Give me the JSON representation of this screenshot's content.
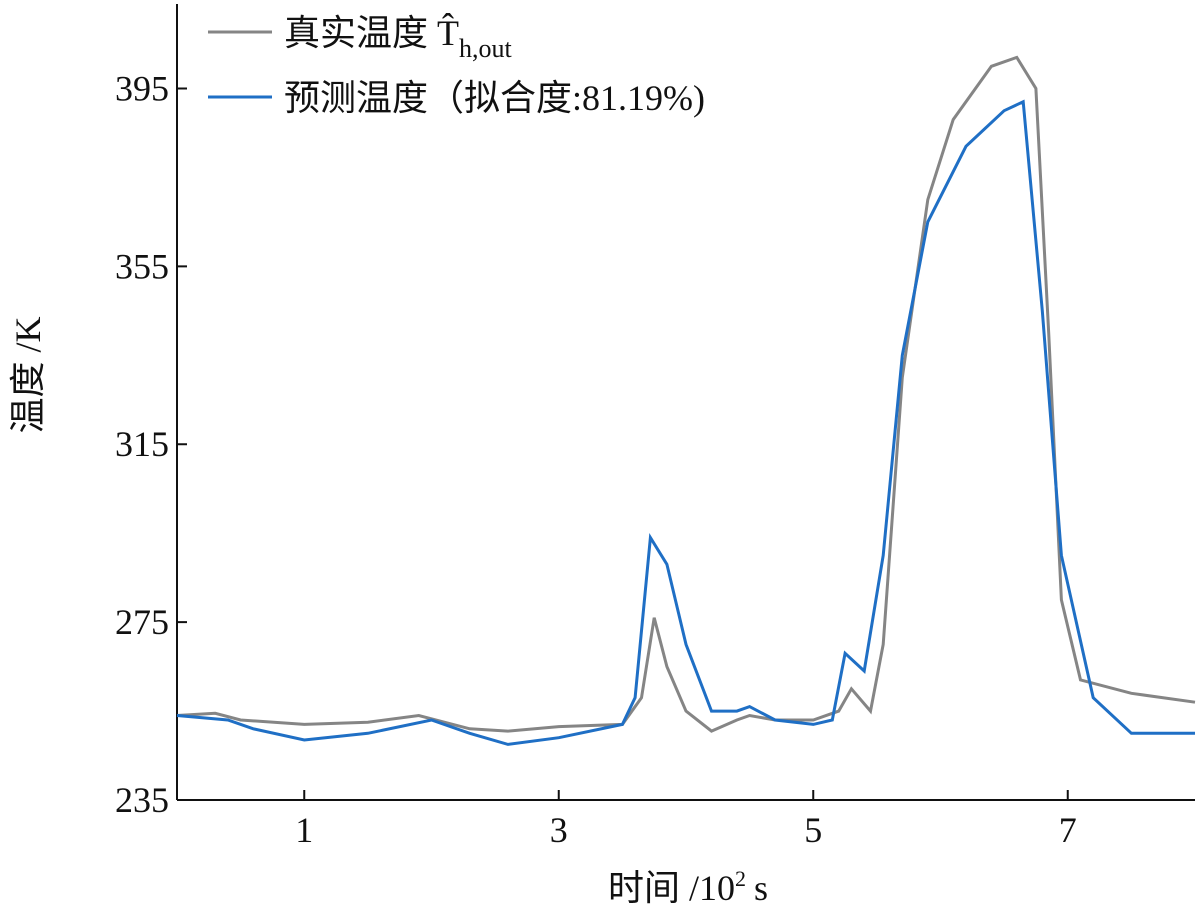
{
  "chart_data": {
    "type": "line",
    "xlabel": {
      "text": "时间 /10",
      "sup": "2",
      "unit": "s"
    },
    "ylabel": "温度 /K",
    "xlim": [
      0,
      8
    ],
    "xticks": [
      1,
      3,
      5,
      7
    ],
    "ylim": [
      235,
      414
    ],
    "yticks": [
      235,
      275,
      315,
      355,
      395
    ],
    "legend": "upper left",
    "series": [
      {
        "name": "真实温度 T̂",
        "name_sub": "h,out",
        "color": "#858585",
        "x": [
          0,
          0.3,
          0.5,
          1.0,
          1.5,
          1.9,
          2.3,
          2.6,
          3.0,
          3.5,
          3.65,
          3.75,
          3.85,
          4.0,
          4.2,
          4.4,
          4.5,
          4.7,
          5.0,
          5.2,
          5.3,
          5.45,
          5.55,
          5.7,
          5.9,
          6.1,
          6.4,
          6.6,
          6.75,
          6.85,
          6.95,
          7.1,
          7.5,
          8.0
        ],
        "values": [
          254,
          254.5,
          253,
          252,
          252.5,
          254,
          251,
          250.5,
          251.5,
          252,
          258,
          276,
          265,
          255,
          250.5,
          253,
          254,
          253,
          253,
          255,
          260,
          255,
          270,
          330,
          370,
          388,
          400,
          402,
          395,
          340,
          280,
          262,
          259,
          257
        ]
      },
      {
        "name": "预测温度（拟合度:81.19%)",
        "color": "#1f6fc5",
        "x": [
          0,
          0.4,
          0.6,
          1.0,
          1.5,
          2.0,
          2.3,
          2.6,
          3.0,
          3.5,
          3.6,
          3.72,
          3.85,
          4.0,
          4.2,
          4.4,
          4.5,
          4.7,
          5.0,
          5.15,
          5.25,
          5.4,
          5.55,
          5.7,
          5.9,
          6.2,
          6.5,
          6.65,
          6.8,
          6.95,
          7.2,
          7.5,
          8.0
        ],
        "values": [
          254,
          253,
          251,
          248.5,
          250,
          253,
          250,
          247.5,
          249,
          252,
          258,
          294,
          288,
          270,
          255,
          255,
          256,
          253,
          252,
          253,
          268,
          264,
          290,
          335,
          365,
          382,
          390,
          392,
          345,
          290,
          258,
          250,
          250
        ]
      }
    ]
  }
}
